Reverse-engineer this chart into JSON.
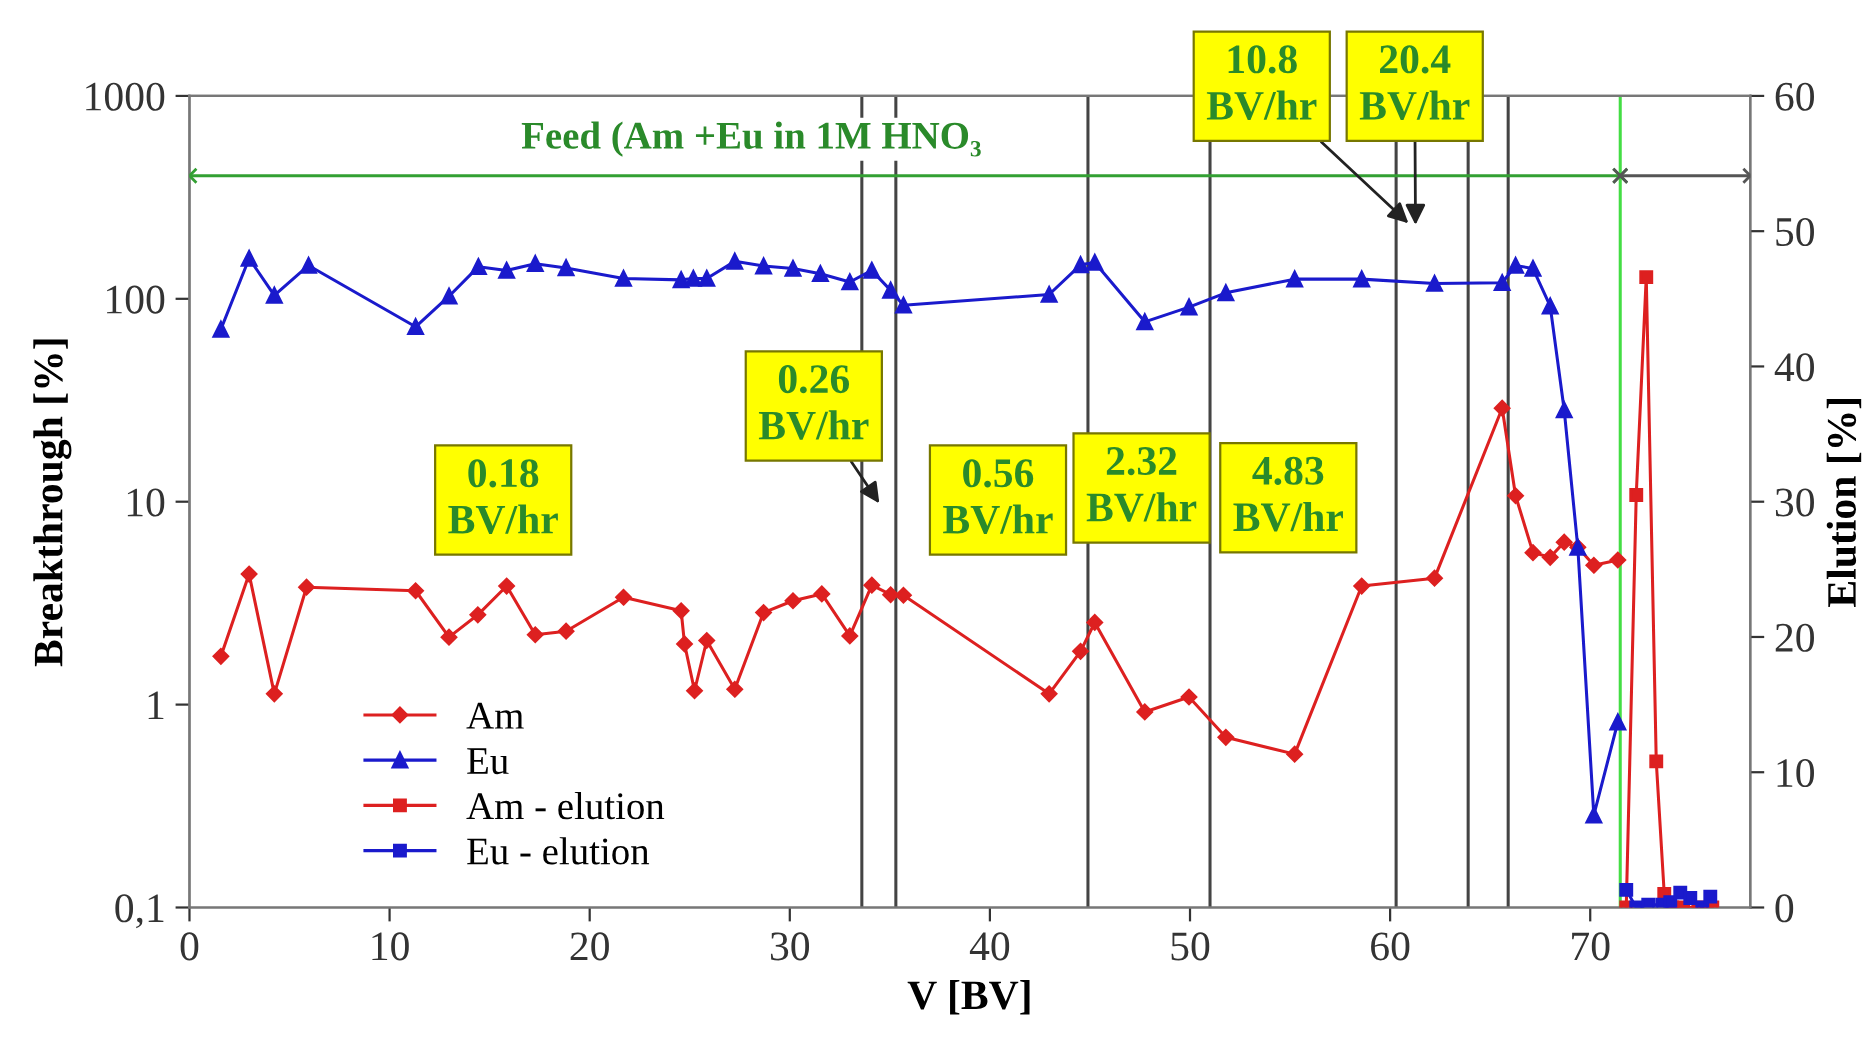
{
  "chart_data": {
    "type": "line",
    "xlabel": "V [BV]",
    "ylabel": "Breakthrough [%]",
    "y2label": "Elution [%]",
    "xlim": [
      0,
      78
    ],
    "xticks": [
      0,
      10,
      20,
      30,
      40,
      50,
      60,
      70
    ],
    "ylim": [
      0.1,
      1000
    ],
    "yticks": [
      {
        "value": 0.1,
        "label": "0,1"
      },
      1,
      10,
      100,
      1000
    ],
    "log": "y",
    "y2lim": [
      0,
      60
    ],
    "y2ticks": [
      0,
      10,
      20,
      30,
      40,
      50,
      60
    ],
    "grid": false,
    "legend": "bottom left",
    "series": [
      {
        "name": "Am",
        "color": "#dd2020",
        "marker": "diamond",
        "x": [
          1.57,
          2.98,
          4.24,
          5.85,
          11.3,
          12.97,
          14.41,
          15.85,
          17.28,
          18.82,
          21.69,
          24.57,
          24.74,
          25.24,
          25.85,
          27.25,
          28.69,
          30.16,
          31.6,
          33.0,
          34.1,
          35.04,
          35.68,
          42.96,
          44.53,
          45.24,
          47.74,
          49.95,
          51.79,
          55.23,
          58.58,
          62.22,
          65.6,
          66.27,
          67.14,
          68.0,
          68.7,
          69.38,
          70.18,
          71.38
        ],
        "values": [
          1.73,
          4.4,
          1.13,
          3.79,
          3.64,
          2.15,
          2.77,
          3.84,
          2.21,
          2.3,
          3.38,
          2.9,
          1.99,
          1.17,
          2.07,
          1.19,
          2.84,
          3.25,
          3.51,
          2.18,
          3.88,
          3.48,
          3.46,
          1.13,
          1.83,
          2.54,
          0.92,
          1.09,
          0.69,
          0.57,
          3.84,
          4.2,
          28.9,
          10.7,
          5.61,
          5.32,
          6.32,
          5.96,
          4.86,
          5.16
        ]
      },
      {
        "name": "Eu",
        "color": "#1a1acc",
        "marker": "triangle",
        "x": [
          1.57,
          2.98,
          4.24,
          5.95,
          11.3,
          12.97,
          14.44,
          15.85,
          17.28,
          18.82,
          21.69,
          24.57,
          25.18,
          25.85,
          27.25,
          28.69,
          30.16,
          31.53,
          33.0,
          34.1,
          35.04,
          35.68,
          42.96,
          44.53,
          45.24,
          47.74,
          49.95,
          51.79,
          55.23,
          58.58,
          62.22,
          65.6,
          66.27,
          67.14,
          68.0,
          68.7,
          69.38,
          70.18,
          71.38
        ],
        "values": [
          70.7,
          158,
          104,
          146,
          72.8,
          103,
          144,
          138,
          149,
          142,
          126,
          124,
          126,
          126,
          153,
          145,
          141,
          133,
          121,
          138,
          110,
          93,
          105,
          147,
          151,
          77,
          91,
          107,
          125,
          125,
          119,
          120,
          146,
          141,
          92,
          28.3,
          5.96,
          0.285,
          0.82
        ]
      },
      {
        "name": "Am - elution",
        "color": "#dd2020",
        "marker": "square",
        "axis": "y2",
        "x": [
          71.8,
          72.3,
          72.8,
          73.3,
          73.7,
          74.1,
          74.65,
          75.4,
          76.1
        ],
        "values": [
          0,
          30.5,
          46.6,
          10.8,
          1.0,
          0,
          0,
          0,
          0
        ]
      },
      {
        "name": "Eu - elution",
        "color": "#1a1acc",
        "marker": "square",
        "axis": "y2",
        "x": [
          71.8,
          72.3,
          72.9,
          73.6,
          74.0,
          74.5,
          75.0,
          75.6,
          76.0
        ],
        "values": [
          1.3,
          0,
          0.2,
          0.2,
          0.4,
          1.1,
          0.7,
          0,
          0.8
        ]
      },
      {
        "color": "#33a033",
        "marker": "cross",
        "axis": "y2",
        "x": [
          0,
          71.5
        ],
        "values": [
          54.1,
          54.1
        ]
      },
      {
        "color": "#555555",
        "marker": "cross",
        "axis": "y2",
        "x": [
          71.5,
          78
        ],
        "values": [
          54.1,
          54.1
        ]
      }
    ],
    "ref_lines": [
      {
        "axis": "x",
        "value": 33.6,
        "color": "#444444"
      },
      {
        "axis": "x",
        "value": 35.3,
        "color": "#444444"
      },
      {
        "axis": "x",
        "value": 44.9,
        "color": "#444444"
      },
      {
        "axis": "x",
        "value": 51.0,
        "color": "#444444"
      },
      {
        "axis": "x",
        "value": 60.3,
        "color": "#444444"
      },
      {
        "axis": "x",
        "value": 63.9,
        "color": "#444444"
      },
      {
        "axis": "x",
        "value": 65.9,
        "color": "#444444"
      },
      {
        "axis": "x",
        "value": 71.5,
        "color": "#44dd44"
      }
    ],
    "annotations": [
      "0.18\nBV/hr",
      "0.26\nBV/hr",
      "0.56\nBV/hr",
      "2.32\nBV/hr",
      "4.83\nBV/hr",
      "10.8\nBV/hr",
      "20.4\nBV/hr",
      "Feed (Am +Eu in 1M HNO₃"
    ]
  }
}
